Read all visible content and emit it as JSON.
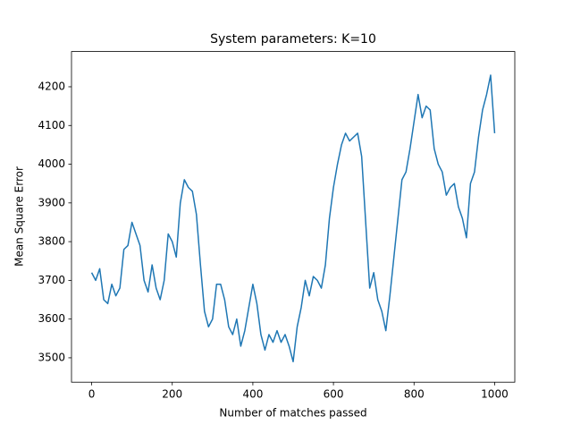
{
  "chart_data": {
    "type": "line",
    "title": "System parameters: K=10",
    "x_label": "Number of matches passed",
    "y_label": "Mean Square Error",
    "x": [
      0,
      10,
      20,
      30,
      40,
      50,
      60,
      70,
      80,
      90,
      100,
      110,
      120,
      130,
      140,
      150,
      160,
      170,
      180,
      190,
      200,
      210,
      220,
      230,
      240,
      250,
      260,
      270,
      280,
      290,
      300,
      310,
      320,
      330,
      340,
      350,
      360,
      370,
      380,
      390,
      400,
      410,
      420,
      430,
      440,
      450,
      460,
      470,
      480,
      490,
      500,
      510,
      520,
      530,
      540,
      550,
      560,
      570,
      580,
      590,
      600,
      610,
      620,
      630,
      640,
      650,
      660,
      670,
      680,
      690,
      700,
      710,
      720,
      730,
      740,
      750,
      760,
      770,
      780,
      790,
      800,
      810,
      820,
      830,
      840,
      850,
      860,
      870,
      880,
      890,
      900,
      910,
      920,
      930,
      940,
      950,
      960,
      970,
      980,
      990,
      1000
    ],
    "series": [
      {
        "color": "#1f77b4",
        "values": [
          3720,
          3700,
          3730,
          3650,
          3640,
          3690,
          3660,
          3680,
          3780,
          3790,
          3850,
          3820,
          3790,
          3700,
          3670,
          3740,
          3680,
          3650,
          3700,
          3820,
          3800,
          3760,
          3900,
          3960,
          3940,
          3930,
          3870,
          3740,
          3620,
          3580,
          3600,
          3690,
          3690,
          3650,
          3580,
          3560,
          3600,
          3530,
          3570,
          3630,
          3690,
          3640,
          3560,
          3520,
          3560,
          3540,
          3570,
          3540,
          3560,
          3530,
          3490,
          3580,
          3630,
          3700,
          3660,
          3710,
          3700,
          3680,
          3740,
          3860,
          3940,
          4000,
          4050,
          4080,
          4060,
          4070,
          4080,
          4020,
          3850,
          3680,
          3720,
          3650,
          3620,
          3570,
          3660,
          3760,
          3860,
          3960,
          3980,
          4040,
          4110,
          4180,
          4120,
          4150,
          4140,
          4040,
          4000,
          3980,
          3920,
          3940,
          3950,
          3890,
          3860,
          3810,
          3950,
          3980,
          4070,
          4140,
          4180,
          4230,
          4080
        ]
      }
    ],
    "xlim": [
      -50,
      1050
    ],
    "ylim": [
      3437,
      4291
    ],
    "xticks": [
      0,
      200,
      400,
      600,
      800,
      1000
    ],
    "yticks": [
      3500,
      3600,
      3700,
      3800,
      3900,
      4000,
      4100,
      4200
    ],
    "grid": false
  }
}
